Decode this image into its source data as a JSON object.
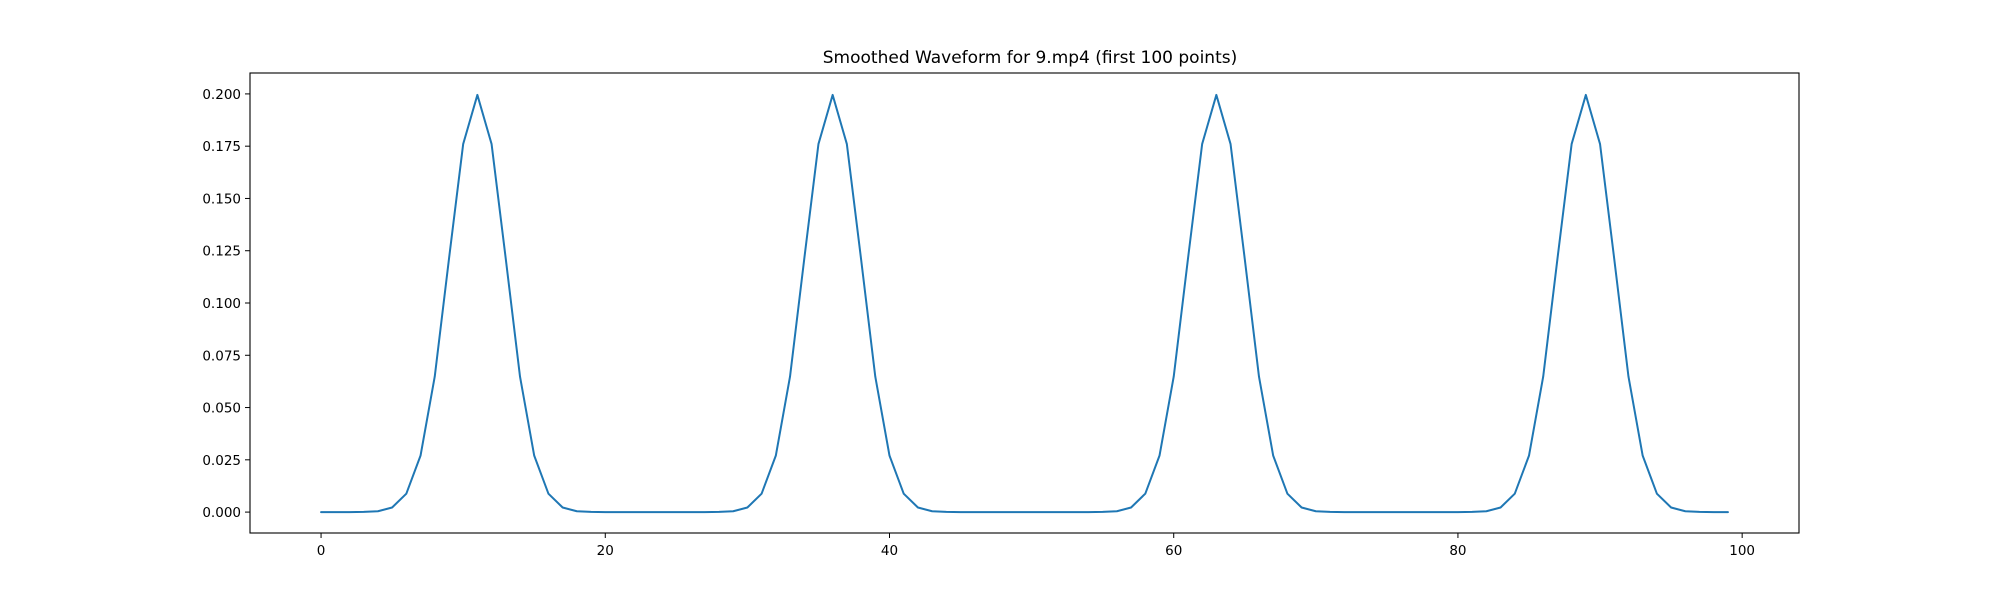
{
  "chart_data": {
    "type": "line",
    "title": "Smoothed Waveform for 9.mp4 (first 100 points)",
    "xlabel": "",
    "ylabel": "",
    "xlim": [
      -5,
      104
    ],
    "ylim": [
      -0.01,
      0.21
    ],
    "xticks": [
      0,
      20,
      40,
      60,
      80,
      100
    ],
    "xtick_labels": [
      "0",
      "20",
      "40",
      "60",
      "80",
      "100"
    ],
    "yticks": [
      0,
      0.025,
      0.05,
      0.075,
      0.1,
      0.125,
      0.15,
      0.175,
      0.2
    ],
    "ytick_labels": [
      "0.000",
      "0.025",
      "0.050",
      "0.075",
      "0.100",
      "0.125",
      "0.150",
      "0.175",
      "0.200"
    ],
    "grid": false,
    "legend": "none",
    "series": [
      {
        "color": "#1f77b4",
        "x": [
          0,
          1,
          2,
          3,
          4,
          5,
          6,
          7,
          8,
          9,
          10,
          11,
          12,
          13,
          14,
          15,
          16,
          17,
          18,
          19,
          20,
          21,
          22,
          23,
          24,
          25,
          26,
          27,
          28,
          29,
          30,
          31,
          32,
          33,
          34,
          35,
          36,
          37,
          38,
          39,
          40,
          41,
          42,
          43,
          44,
          45,
          46,
          47,
          48,
          49,
          50,
          51,
          52,
          53,
          54,
          55,
          56,
          57,
          58,
          59,
          60,
          61,
          62,
          63,
          64,
          65,
          66,
          67,
          68,
          69,
          70,
          71,
          72,
          73,
          74,
          75,
          76,
          77,
          78,
          79,
          80,
          81,
          82,
          83,
          84,
          85,
          86,
          87,
          88,
          89,
          90,
          91,
          92,
          93,
          94,
          95,
          96,
          97,
          98,
          99
        ],
        "y": [
          0,
          0,
          0,
          0.0001,
          0.0004,
          0.0022,
          0.0088,
          0.027,
          0.0648,
          0.121,
          0.176,
          0.1995,
          0.176,
          0.121,
          0.0648,
          0.027,
          0.0088,
          0.0022,
          0.0004,
          0.0001,
          0,
          0,
          0,
          0,
          0,
          0,
          0,
          0,
          0.0001,
          0.0004,
          0.0022,
          0.0088,
          0.027,
          0.0648,
          0.121,
          0.176,
          0.1995,
          0.176,
          0.121,
          0.0648,
          0.027,
          0.0088,
          0.0022,
          0.0004,
          0.0001,
          0,
          0,
          0,
          0,
          0,
          0,
          0,
          0,
          0,
          0,
          0.0001,
          0.0004,
          0.0022,
          0.0088,
          0.027,
          0.0648,
          0.121,
          0.176,
          0.1995,
          0.176,
          0.121,
          0.0648,
          0.027,
          0.0088,
          0.0022,
          0.0004,
          0.0001,
          0,
          0,
          0,
          0,
          0,
          0,
          0,
          0,
          0,
          0.0001,
          0.0004,
          0.0022,
          0.0088,
          0.027,
          0.0648,
          0.121,
          0.176,
          0.1995,
          0.176,
          0.121,
          0.0648,
          0.027,
          0.0088,
          0.0022,
          0.0004,
          0.0001,
          0,
          0
        ]
      }
    ]
  }
}
